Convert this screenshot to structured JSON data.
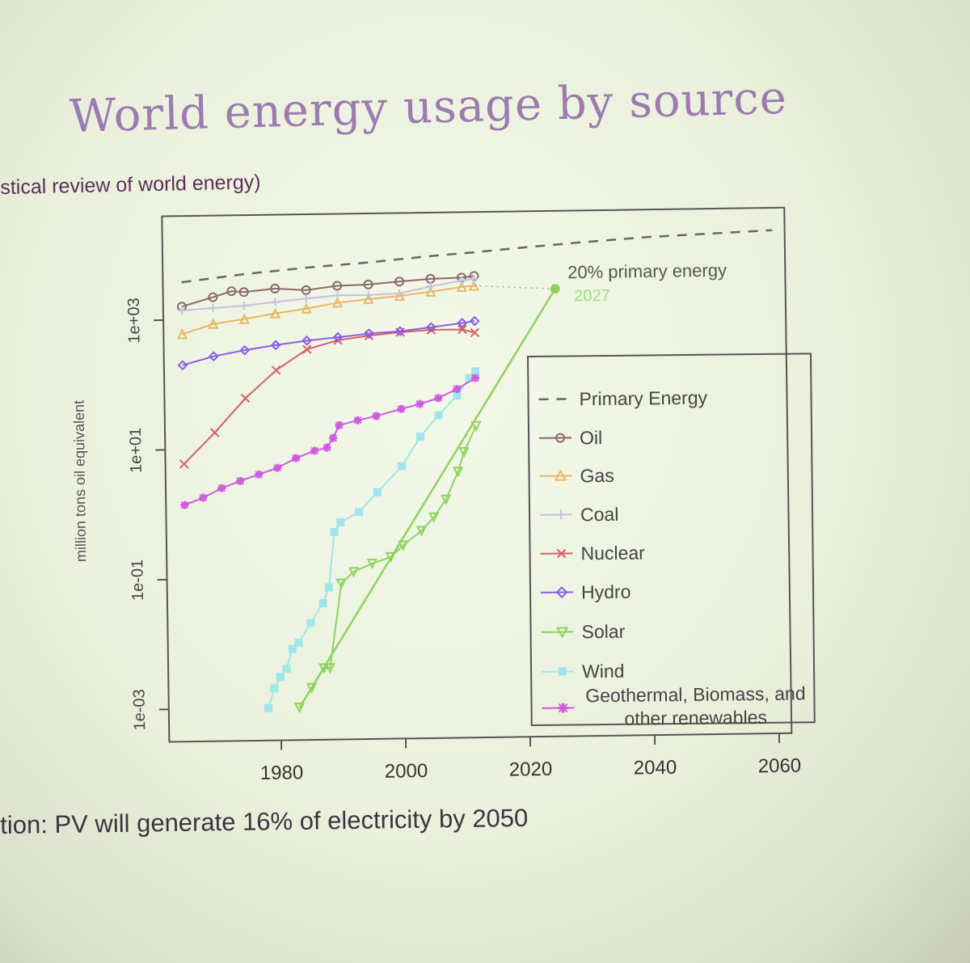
{
  "slide": {
    "title": "World energy usage by source",
    "subtitle": "stical review of world energy)",
    "footer": "tion:  PV will generate 16% of electricity by 2050"
  },
  "chart_data": {
    "type": "line",
    "title": "",
    "xlabel": "",
    "ylabel": "million tons oil equivalent",
    "x_ticks": [
      1980,
      2000,
      2020,
      2040,
      2060
    ],
    "y_ticks": [
      "1e-03",
      "1e-01",
      "1e+01",
      "1e+03"
    ],
    "xlim": [
      1962,
      2062
    ],
    "ylim_log10": [
      -3.5,
      4.6
    ],
    "y_scale": "log",
    "legend_position": "right",
    "annotations": [
      {
        "text": "20% primary energy",
        "x": 2026,
        "y": 3600,
        "color": "#555555"
      },
      {
        "text": "2027",
        "x": 2027,
        "y": 1600,
        "color": "#8fe37a"
      }
    ],
    "projection": {
      "series": "Solar",
      "from": [
        1983,
        0.001
      ],
      "to": [
        2025,
        2500
      ],
      "color": "#8fd35e"
    },
    "series": [
      {
        "name": "Primary Energy",
        "color": "#666666",
        "style": "dashed",
        "x": [
          1965,
          1975,
          1985,
          1995,
          2005,
          2012,
          2020,
          2030,
          2040,
          2060
        ],
        "y": [
          3800,
          4900,
          6000,
          7000,
          8500,
          9500,
          11000,
          13000,
          15000,
          18000
        ]
      },
      {
        "name": "Oil",
        "color": "#8b6a6a",
        "x": [
          1965,
          1970,
          1973,
          1975,
          1980,
          1985,
          1990,
          1995,
          2000,
          2005,
          2010,
          2012
        ],
        "y": [
          1600,
          2200,
          2700,
          2600,
          2900,
          2700,
          3100,
          3200,
          3500,
          3800,
          3900,
          4100
        ]
      },
      {
        "name": "Gas",
        "color": "#e8b860",
        "x": [
          1965,
          1970,
          1975,
          1980,
          1985,
          1990,
          1995,
          2000,
          2005,
          2010,
          2012
        ],
        "y": [
          600,
          850,
          1000,
          1200,
          1400,
          1700,
          1900,
          2100,
          2400,
          2800,
          2900
        ]
      },
      {
        "name": "Coal",
        "color": "#c6c2dd",
        "x": [
          1965,
          1970,
          1975,
          1980,
          1985,
          1990,
          1995,
          2000,
          2005,
          2010,
          2012
        ],
        "y": [
          1400,
          1500,
          1600,
          1800,
          2000,
          2200,
          2200,
          2300,
          2900,
          3500,
          3700
        ]
      },
      {
        "name": "Nuclear",
        "color": "#d96060",
        "x": [
          1965,
          1970,
          1975,
          1980,
          1985,
          1990,
          1995,
          2000,
          2005,
          2010,
          2012
        ],
        "y": [
          6,
          18,
          60,
          160,
          330,
          450,
          520,
          580,
          620,
          620,
          550
        ]
      },
      {
        "name": "Hydro",
        "color": "#8a5ee8",
        "x": [
          1965,
          1970,
          1975,
          1980,
          1985,
          1990,
          1995,
          2000,
          2005,
          2010,
          2012
        ],
        "y": [
          200,
          270,
          330,
          390,
          450,
          500,
          560,
          600,
          680,
          780,
          830
        ]
      },
      {
        "name": "Solar",
        "color": "#8fd35e",
        "x": [
          1983,
          1985,
          1987,
          1988,
          1990,
          1992,
          1995,
          1998,
          2000,
          2003,
          2005,
          2007,
          2009,
          2010,
          2012
        ],
        "y": [
          0.001,
          0.002,
          0.004,
          0.004,
          0.08,
          0.12,
          0.16,
          0.2,
          0.3,
          0.5,
          0.8,
          1.5,
          4,
          8,
          20
        ]
      },
      {
        "name": "Wind",
        "color": "#9ee6ea",
        "x": [
          1978,
          1979,
          1980,
          1981,
          1982,
          1983,
          1985,
          1987,
          1988,
          1989,
          1990,
          1993,
          1996,
          2000,
          2003,
          2006,
          2009,
          2011,
          2012
        ],
        "y": [
          0.001,
          0.002,
          0.003,
          0.004,
          0.008,
          0.01,
          0.02,
          0.04,
          0.07,
          0.5,
          0.7,
          1,
          2,
          5,
          14,
          30,
          60,
          110,
          140
        ]
      },
      {
        "name": "Geothermal, Biomass, and other renewables",
        "color": "#cf5ae0",
        "x": [
          1965,
          1968,
          1971,
          1974,
          1977,
          1980,
          1983,
          1986,
          1988,
          1989,
          1990,
          1993,
          1996,
          2000,
          2003,
          2006,
          2009,
          2012
        ],
        "y": [
          1.4,
          1.8,
          2.5,
          3.2,
          4,
          5,
          7,
          9,
          10,
          14,
          22,
          26,
          30,
          38,
          45,
          55,
          75,
          110
        ]
      }
    ]
  }
}
